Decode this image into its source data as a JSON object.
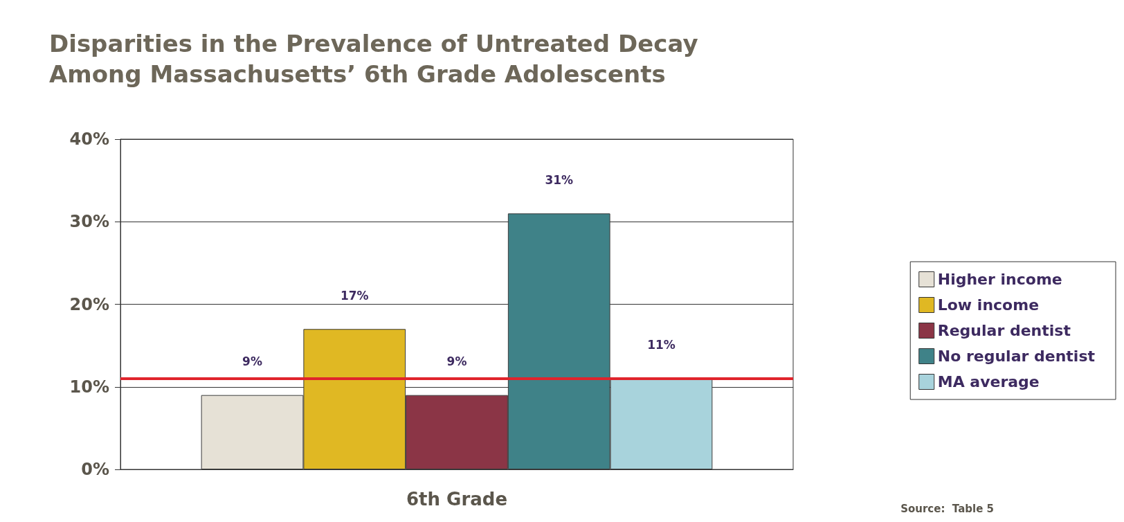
{
  "chart_data": {
    "type": "bar",
    "title": "Disparities in the Prevalence of Untreated Decay Among Massachusetts’ 6th Grade Adolescents",
    "categories": [
      "6th Grade"
    ],
    "series": [
      {
        "name": "Higher income",
        "color": "#e6e1d6",
        "values": [
          9
        ],
        "value_labels": [
          "9%"
        ]
      },
      {
        "name": "Low income",
        "color": "#e0b823",
        "values": [
          17
        ],
        "value_labels": [
          "17%"
        ]
      },
      {
        "name": "Regular dentist",
        "color": "#8b3546",
        "values": [
          9
        ],
        "value_labels": [
          "9%"
        ]
      },
      {
        "name": "No regular dentist",
        "color": "#3f8288",
        "values": [
          31
        ],
        "value_labels": [
          "31%"
        ]
      },
      {
        "name": "MA average",
        "color": "#a8d3dc",
        "values": [
          11
        ],
        "value_labels": [
          "11%"
        ]
      }
    ],
    "ylim": [
      0,
      40
    ],
    "yticks": [
      {
        "value": 0,
        "label": "0%"
      },
      {
        "value": 10,
        "label": "10%"
      },
      {
        "value": 20,
        "label": "20%"
      },
      {
        "value": 30,
        "label": "30%"
      },
      {
        "value": 40,
        "label": "40%"
      }
    ],
    "grid": "y",
    "legend": "right",
    "ref_lines": [
      {
        "axis": "y",
        "value": 11,
        "color": "#e0242c"
      }
    ],
    "annotations": [
      "Source:  Table 5"
    ]
  }
}
